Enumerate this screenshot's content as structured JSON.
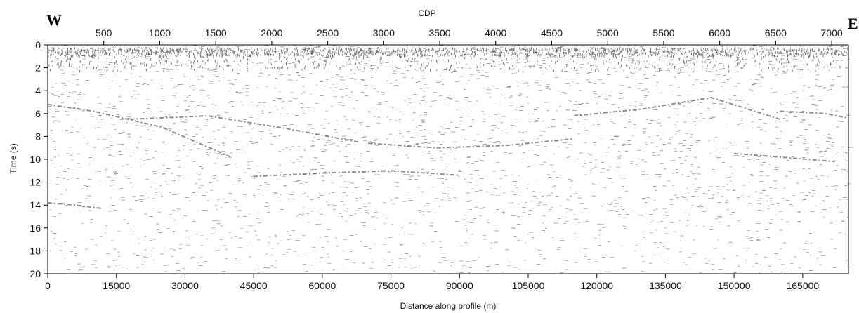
{
  "chart_data": {
    "type": "heatmap",
    "description_type": "seismic-section",
    "corner_labels": {
      "left": "W",
      "right": "E"
    },
    "top_axis": {
      "label": "CDP",
      "ticks": [
        500,
        1000,
        1500,
        2000,
        2500,
        3000,
        3500,
        4000,
        4500,
        5000,
        5500,
        6000,
        6500,
        7000
      ],
      "range": [
        0,
        7150
      ]
    },
    "bottom_axis": {
      "label": "Distance along profile (m)",
      "ticks": [
        0,
        15000,
        30000,
        45000,
        60000,
        75000,
        90000,
        105000,
        120000,
        135000,
        150000,
        165000
      ],
      "range": [
        0,
        175000
      ]
    },
    "left_axis": {
      "label": "Time (s)",
      "ticks": [
        0,
        2,
        4,
        6,
        8,
        10,
        12,
        14,
        16,
        18,
        20
      ],
      "range": [
        0,
        20
      ],
      "inverted": true
    },
    "reflectors": [
      {
        "x": [
          0,
          10000,
          25000,
          40000
        ],
        "y": [
          5.2,
          5.8,
          7.2,
          9.8
        ]
      },
      {
        "x": [
          18000,
          35000,
          52000,
          68000
        ],
        "y": [
          6.5,
          6.2,
          7.3,
          8.5
        ]
      },
      {
        "x": [
          45000,
          60000,
          75000,
          90000
        ],
        "y": [
          11.5,
          11.2,
          11.0,
          11.4
        ]
      },
      {
        "x": [
          70000,
          85000,
          100000,
          115000
        ],
        "y": [
          8.6,
          9.0,
          8.8,
          8.2
        ]
      },
      {
        "x": [
          115000,
          130000,
          145000,
          160000
        ],
        "y": [
          6.2,
          5.6,
          4.6,
          6.5
        ]
      },
      {
        "x": [
          150000,
          160000,
          172000
        ],
        "y": [
          9.5,
          9.8,
          10.2
        ]
      },
      {
        "x": [
          0,
          6000,
          12000
        ],
        "y": [
          13.8,
          14.0,
          14.3
        ]
      },
      {
        "x": [
          160000,
          170000,
          175000
        ],
        "y": [
          5.8,
          6.0,
          6.4
        ]
      }
    ],
    "colors": {
      "trace": "#000000",
      "background": "#ffffff"
    },
    "grid": false
  }
}
